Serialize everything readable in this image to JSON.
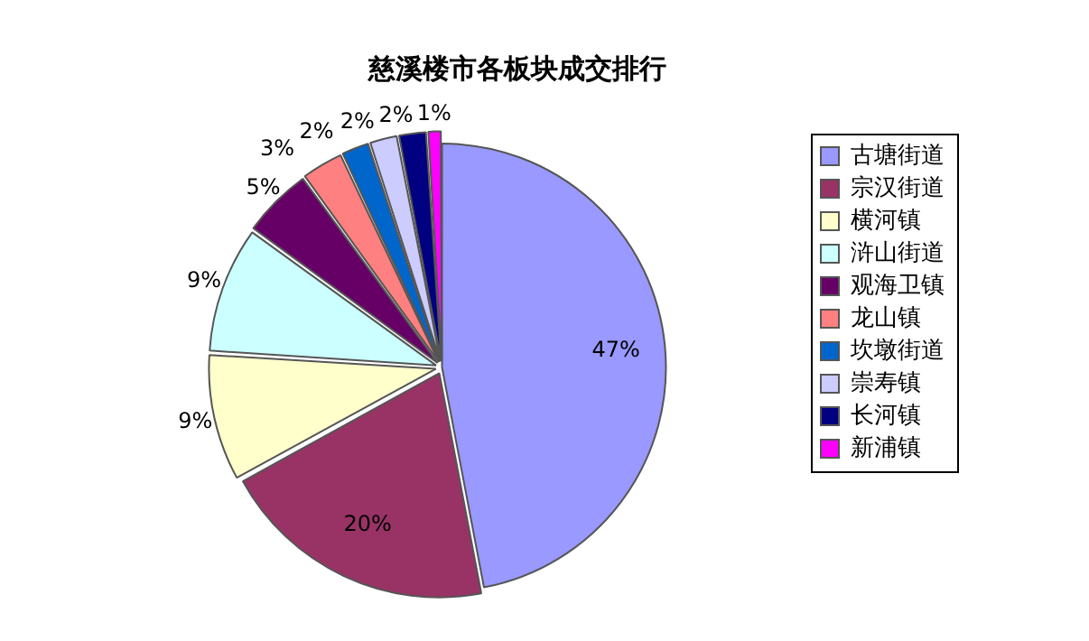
{
  "chart_data": {
    "type": "pie",
    "title": "慈溪楼市各板块成交排行",
    "categories": [
      "古塘街道",
      "宗汉街道",
      "横河镇",
      "浒山街道",
      "观海卫镇",
      "龙山镇",
      "坎墩街道",
      "崇寿镇",
      "长河镇",
      "新浦镇"
    ],
    "values": [
      47,
      20,
      9,
      9,
      5,
      3,
      2,
      2,
      2,
      1
    ],
    "value_labels": [
      "47%",
      "20%",
      "9%",
      "9%",
      "5%",
      "3%",
      "2%",
      "2%",
      "2%",
      "1%"
    ],
    "colors": [
      "#9999ff",
      "#993366",
      "#ffffcc",
      "#ccffff",
      "#660066",
      "#ff8080",
      "#0066cc",
      "#ccccff",
      "#000080",
      "#ff00ff"
    ],
    "legend": "right"
  }
}
